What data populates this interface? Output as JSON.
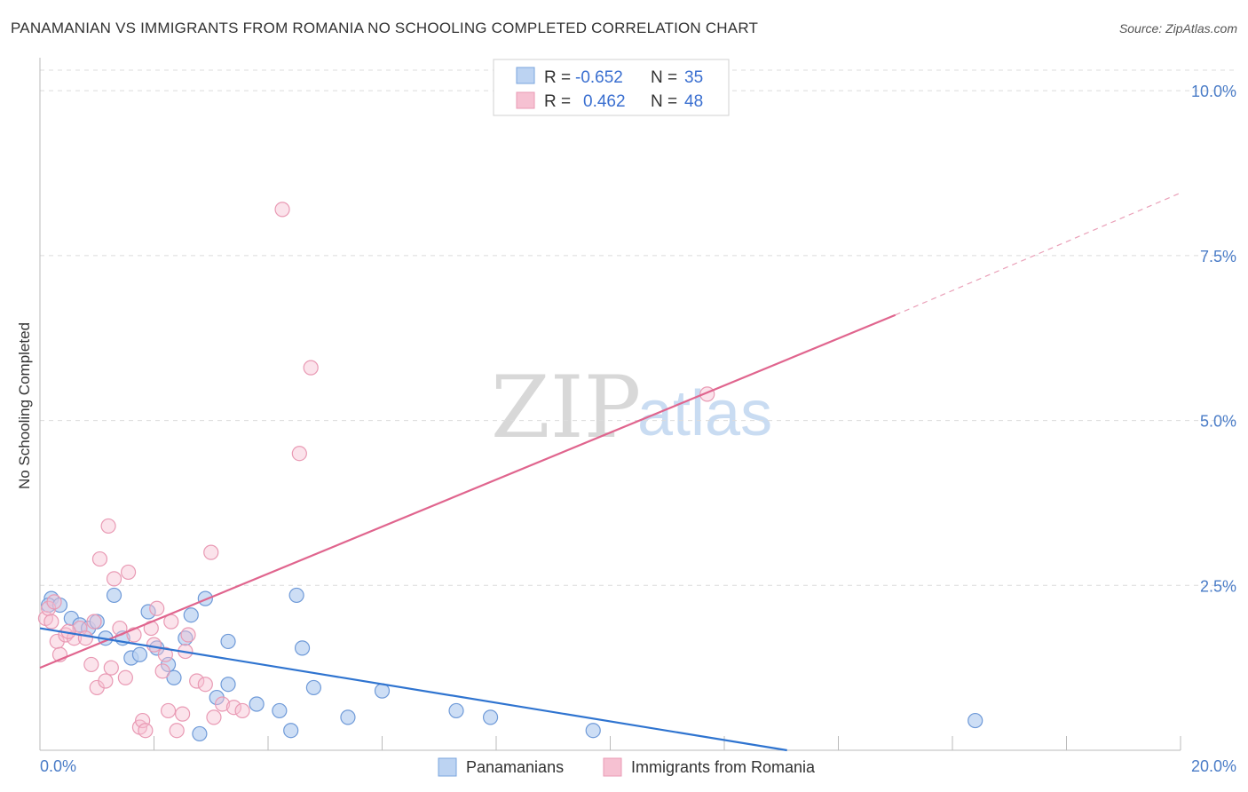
{
  "title": "PANAMANIAN VS IMMIGRANTS FROM ROMANIA NO SCHOOLING COMPLETED CORRELATION CHART",
  "source": "Source: ZipAtlas.com",
  "watermark": {
    "zip": "ZIP",
    "atlas": "atlas"
  },
  "colors": {
    "blue": "#4a7cc7",
    "blue_fill": "#bcd3f2",
    "blue_line": "#2f74d0",
    "pink_fill": "#f6c1d2",
    "pink_line": "#e0658e",
    "pink_stroke": "#e99ab4"
  },
  "legend": {
    "rows": [
      {
        "r_label": "R =",
        "r_value": "-0.652",
        "n_label": "N =",
        "n_value": "35"
      },
      {
        "r_label": "R =",
        "r_value": "0.462",
        "n_label": "N =",
        "n_value": "48"
      }
    ]
  },
  "bottom_legend": [
    "Panamanians",
    "Immigrants from Romania"
  ],
  "chart_data": {
    "type": "scatter",
    "title": "PANAMANIAN VS IMMIGRANTS FROM ROMANIA NO SCHOOLING COMPLETED CORRELATION CHART",
    "xlabel": "",
    "ylabel": "No Schooling Completed",
    "xlim": [
      0,
      20
    ],
    "ylim": [
      0,
      10.5
    ],
    "x_tick_labels": [
      "0.0%",
      "20.0%"
    ],
    "y_ticks": [
      2.5,
      5.0,
      7.5,
      10.0
    ],
    "y_tick_labels": [
      "2.5%",
      "5.0%",
      "7.5%",
      "10.0%"
    ],
    "grid": true,
    "series": [
      {
        "name": "Panamanians",
        "r": -0.652,
        "n": 35,
        "trend": {
          "x": [
            0,
            13.1
          ],
          "y": [
            1.85,
            0.0
          ]
        },
        "points": [
          [
            0.2,
            2.3
          ],
          [
            0.15,
            2.2
          ],
          [
            0.35,
            2.2
          ],
          [
            0.55,
            2.0
          ],
          [
            0.7,
            1.9
          ],
          [
            0.85,
            1.85
          ],
          [
            1.0,
            1.95
          ],
          [
            1.15,
            1.7
          ],
          [
            1.3,
            2.35
          ],
          [
            1.45,
            1.7
          ],
          [
            1.6,
            1.4
          ],
          [
            1.75,
            1.45
          ],
          [
            1.9,
            2.1
          ],
          [
            2.05,
            1.55
          ],
          [
            2.25,
            1.3
          ],
          [
            2.35,
            1.1
          ],
          [
            2.55,
            1.7
          ],
          [
            2.65,
            2.05
          ],
          [
            2.9,
            2.3
          ],
          [
            3.1,
            0.8
          ],
          [
            3.3,
            1.0
          ],
          [
            3.3,
            1.65
          ],
          [
            3.8,
            0.7
          ],
          [
            4.2,
            0.6
          ],
          [
            4.4,
            0.3
          ],
          [
            4.5,
            2.35
          ],
          [
            4.6,
            1.55
          ],
          [
            4.8,
            0.95
          ],
          [
            5.4,
            0.5
          ],
          [
            6.0,
            0.9
          ],
          [
            7.3,
            0.6
          ],
          [
            7.9,
            0.5
          ],
          [
            9.7,
            0.3
          ],
          [
            2.8,
            0.25
          ],
          [
            16.4,
            0.45
          ]
        ]
      },
      {
        "name": "Immigrants from Romania",
        "r": 0.462,
        "n": 48,
        "trend": {
          "x": [
            0,
            15.0
          ],
          "y": [
            1.25,
            6.6
          ]
        },
        "trend_dashed": {
          "x": [
            15.0,
            20.0
          ],
          "y": [
            6.6,
            8.45
          ]
        },
        "points": [
          [
            0.1,
            2.0
          ],
          [
            0.15,
            2.15
          ],
          [
            0.2,
            1.95
          ],
          [
            0.3,
            1.65
          ],
          [
            0.35,
            1.45
          ],
          [
            0.45,
            1.75
          ],
          [
            0.6,
            1.7
          ],
          [
            0.7,
            1.85
          ],
          [
            0.8,
            1.7
          ],
          [
            0.9,
            1.3
          ],
          [
            1.0,
            0.95
          ],
          [
            1.05,
            2.9
          ],
          [
            1.15,
            1.05
          ],
          [
            1.2,
            3.4
          ],
          [
            1.3,
            2.6
          ],
          [
            1.4,
            1.85
          ],
          [
            1.5,
            1.1
          ],
          [
            1.55,
            2.7
          ],
          [
            1.65,
            1.75
          ],
          [
            1.75,
            0.35
          ],
          [
            1.8,
            0.45
          ],
          [
            1.85,
            0.3
          ],
          [
            1.95,
            1.85
          ],
          [
            2.05,
            2.15
          ],
          [
            2.15,
            1.2
          ],
          [
            2.2,
            1.45
          ],
          [
            2.25,
            0.6
          ],
          [
            2.3,
            1.95
          ],
          [
            2.4,
            0.3
          ],
          [
            2.5,
            0.55
          ],
          [
            2.55,
            1.5
          ],
          [
            2.6,
            1.75
          ],
          [
            2.75,
            1.05
          ],
          [
            2.9,
            1.0
          ],
          [
            3.0,
            3.0
          ],
          [
            3.05,
            0.5
          ],
          [
            3.2,
            0.7
          ],
          [
            3.4,
            0.65
          ],
          [
            3.55,
            0.6
          ],
          [
            4.25,
            8.2
          ],
          [
            4.55,
            4.5
          ],
          [
            4.75,
            5.8
          ],
          [
            11.7,
            5.4
          ],
          [
            0.25,
            2.25
          ],
          [
            0.5,
            1.8
          ],
          [
            1.25,
            1.25
          ],
          [
            2.0,
            1.6
          ],
          [
            0.95,
            1.95
          ]
        ]
      }
    ]
  }
}
